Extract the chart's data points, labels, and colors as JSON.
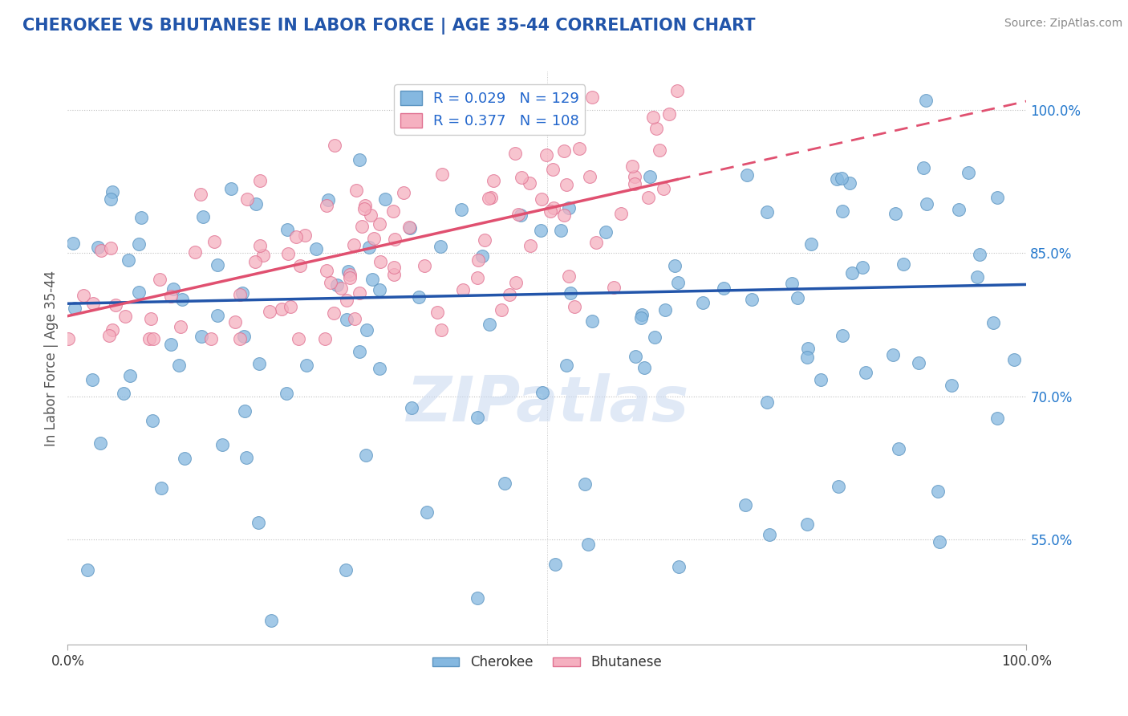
{
  "title": "CHEROKEE VS BHUTANESE IN LABOR FORCE | AGE 35-44 CORRELATION CHART",
  "source": "Source: ZipAtlas.com",
  "ylabel": "In Labor Force | Age 35-44",
  "xlim": [
    0.0,
    1.0
  ],
  "ylim": [
    0.44,
    1.04
  ],
  "yticks": [
    0.55,
    0.7,
    0.85,
    1.0
  ],
  "ytick_labels": [
    "55.0%",
    "70.0%",
    "85.0%",
    "100.0%"
  ],
  "cherokee_R": 0.029,
  "cherokee_N": 129,
  "bhutanese_R": 0.377,
  "bhutanese_N": 108,
  "cherokee_color": "#85b8e0",
  "cherokee_edge": "#5a93c0",
  "bhutanese_color": "#f5b0c0",
  "bhutanese_edge": "#e07090",
  "trend_cherokee_color": "#2255aa",
  "trend_bhutanese_color": "#e05070",
  "watermark": "ZIPatlas",
  "watermark_color": "#c8d8f0",
  "background_color": "#ffffff",
  "grid_color": "#c0c0c0",
  "title_color": "#2255aa",
  "source_color": "#888888",
  "legend_r1": "R = 0.029",
  "legend_n1": "N = 129",
  "legend_r2": "R = 0.377",
  "legend_n2": "N = 108",
  "legend_color1": "#85b8e0",
  "legend_color2": "#f5b0c0"
}
